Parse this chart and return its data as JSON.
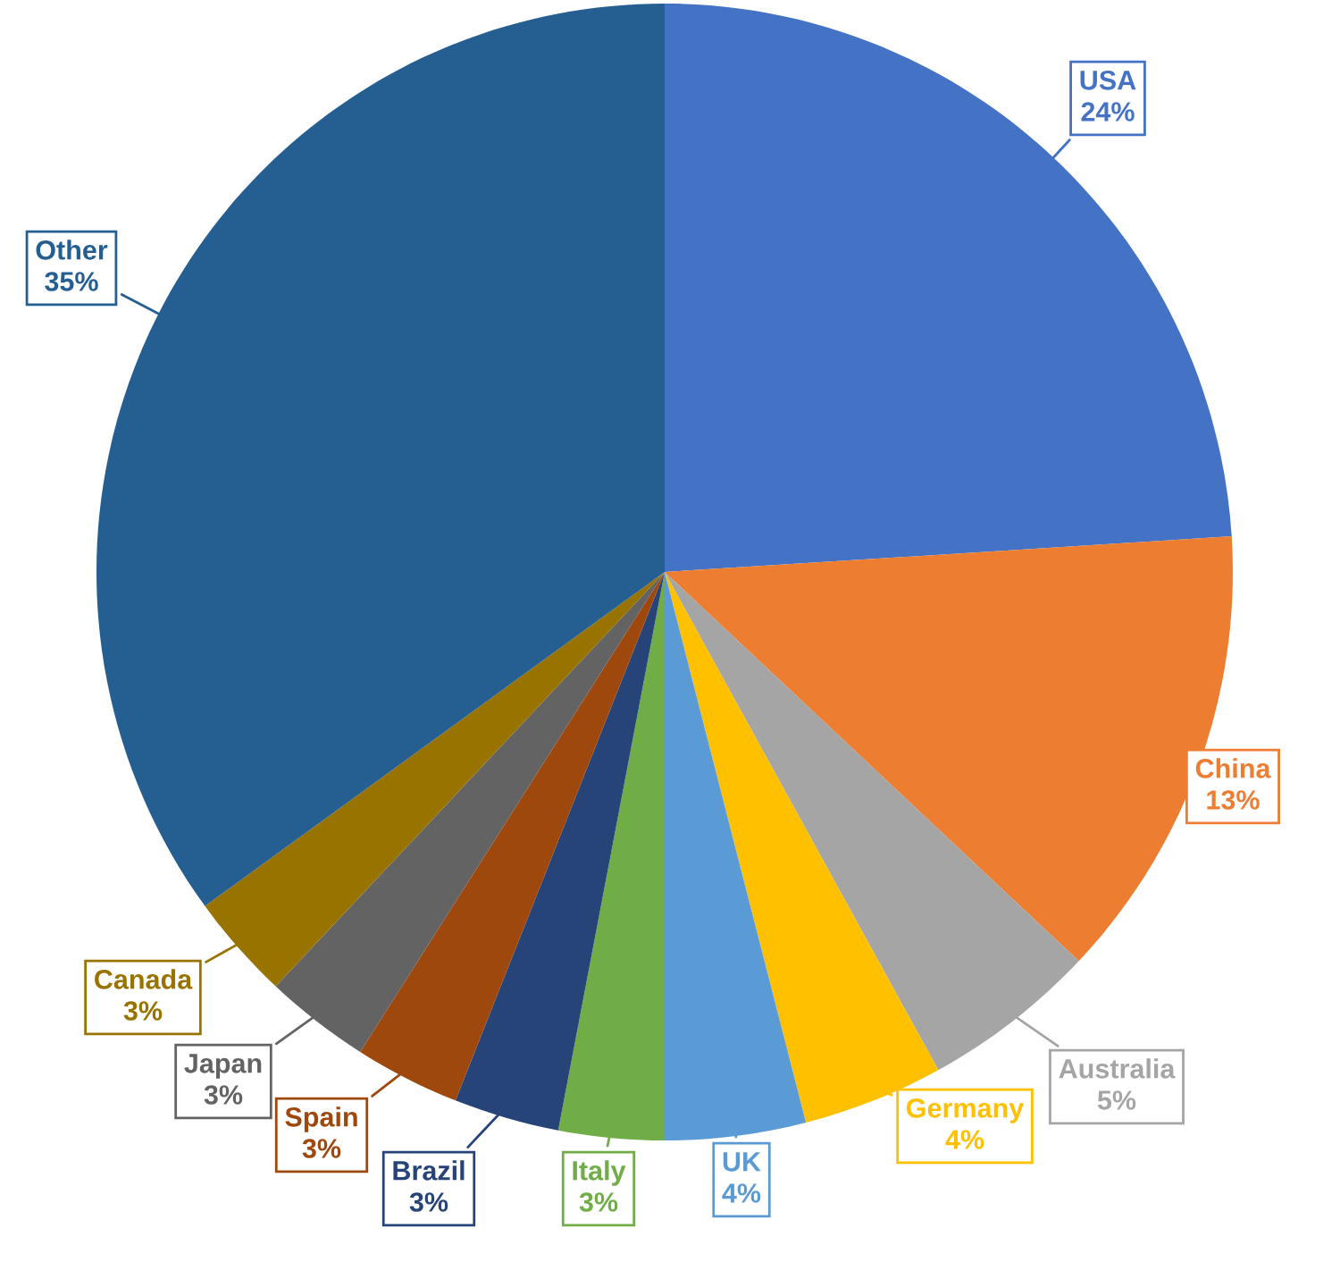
{
  "chart_data": {
    "type": "pie",
    "categories": [
      "USA",
      "China",
      "Australia",
      "Germany",
      "UK",
      "Italy",
      "Brazil",
      "Spain",
      "Japan",
      "Canada",
      "Other"
    ],
    "values": [
      24,
      13,
      5,
      4,
      4,
      3,
      3,
      3,
      3,
      3,
      35
    ],
    "colors": [
      "#4472c4",
      "#ed7d31",
      "#a5a5a5",
      "#ffc000",
      "#5b9bd5",
      "#70ad47",
      "#264478",
      "#9e480e",
      "#636363",
      "#997300",
      "#255e91"
    ],
    "value_labels": [
      "24%",
      "13%",
      "5%",
      "4%",
      "4%",
      "3%",
      "3%",
      "3%",
      "3%",
      "3%",
      "35%"
    ]
  }
}
